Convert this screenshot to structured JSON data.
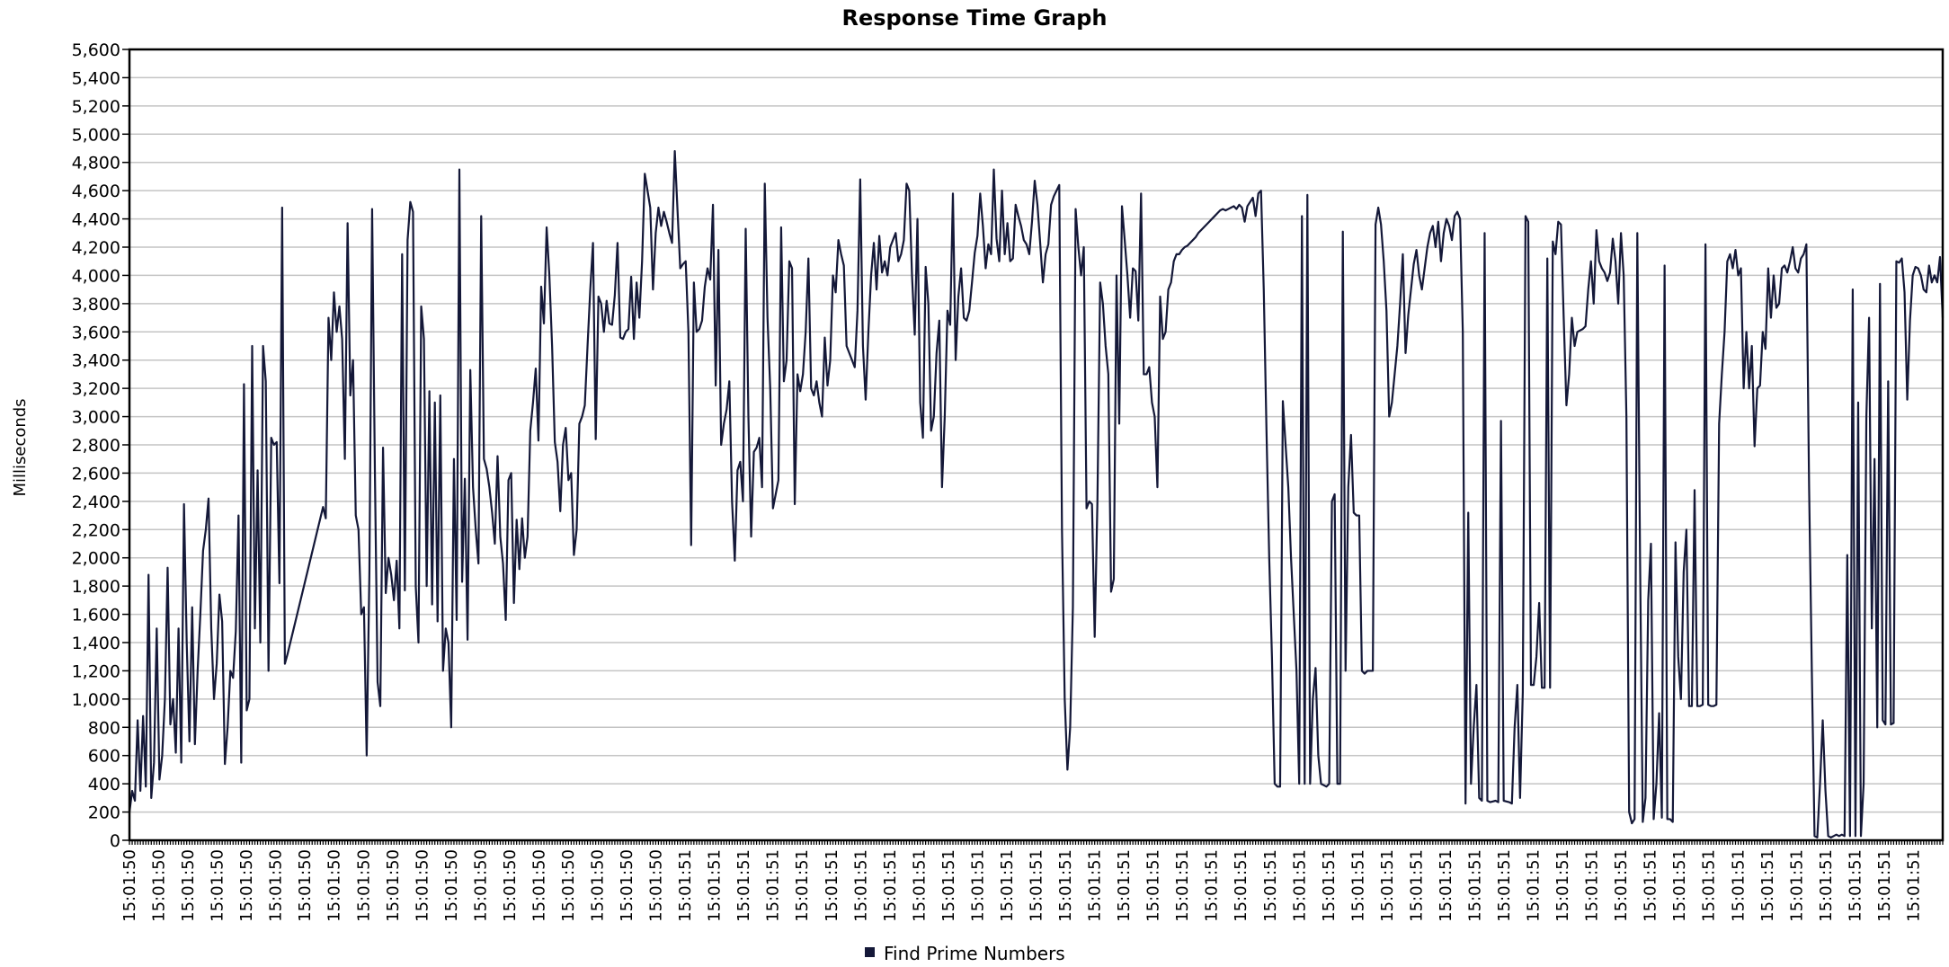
{
  "chart_data": {
    "type": "line",
    "title": "Response Time Graph",
    "xlabel": "",
    "ylabel": "Milliseconds",
    "ylim": [
      0,
      5600
    ],
    "ytick_step": 200,
    "grid": true,
    "legend_position": "bottom-center",
    "x_tick_labels": [
      "15:01:50",
      "15:01:50",
      "15:01:50",
      "15:01:50",
      "15:01:50",
      "15:01:50",
      "15:01:50",
      "15:01:50",
      "15:01:50",
      "15:01:50",
      "15:01:50",
      "15:01:50",
      "15:01:50",
      "15:01:50",
      "15:01:50",
      "15:01:50",
      "15:01:50",
      "15:01:50",
      "15:01:50",
      "15:01:51",
      "15:01:51",
      "15:01:51",
      "15:01:51",
      "15:01:51",
      "15:01:51",
      "15:01:51",
      "15:01:51",
      "15:01:51",
      "15:01:51",
      "15:01:51",
      "15:01:51",
      "15:01:51",
      "15:01:51",
      "15:01:51",
      "15:01:51",
      "15:01:51",
      "15:01:51",
      "15:01:51",
      "15:01:51",
      "15:01:51",
      "15:01:51",
      "15:01:51",
      "15:01:51",
      "15:01:51",
      "15:01:51",
      "15:01:51",
      "15:01:51",
      "15:01:51",
      "15:01:51",
      "15:01:51",
      "15:01:51",
      "15:01:51",
      "15:01:51",
      "15:01:51",
      "15:01:51",
      "15:01:51",
      "15:01:51",
      "15:01:51",
      "15:01:51",
      "15:01:51",
      "15:01:51",
      "15:01:51"
    ],
    "series": [
      {
        "name": "Find Prime Numbers",
        "color": "#141838",
        "values": [
          200,
          350,
          280,
          850,
          350,
          880,
          380,
          1880,
          300,
          550,
          1500,
          430,
          600,
          1000,
          1930,
          820,
          1000,
          620,
          1500,
          550,
          2380,
          1400,
          700,
          1650,
          680,
          1200,
          1600,
          2050,
          2200,
          2420,
          1500,
          1000,
          1250,
          1740,
          1550,
          540,
          800,
          1200,
          1150,
          1480,
          2300,
          550,
          3230,
          920,
          1000,
          3500,
          1500,
          2620,
          1400,
          3500,
          3250,
          1200,
          2850,
          2800,
          2820,
          1820,
          4480,
          1250,
          1320,
          1400,
          1480,
          1560,
          1640,
          1720,
          1800,
          1880,
          1960,
          2040,
          2120,
          2200,
          2280,
          2360,
          2280,
          3700,
          3400,
          3880,
          3600,
          3780,
          3550,
          2700,
          4370,
          3150,
          3400,
          2300,
          2200,
          1600,
          1650,
          600,
          1900,
          4470,
          2630,
          1120,
          950,
          2780,
          1750,
          2000,
          1880,
          1700,
          1980,
          1500,
          4150,
          1770,
          4250,
          4520,
          4450,
          1800,
          1400,
          3780,
          3550,
          1800,
          3180,
          1670,
          3100,
          1550,
          3150,
          1200,
          1500,
          1400,
          800,
          2700,
          1560,
          4750,
          1830,
          2560,
          1420,
          3330,
          2500,
          2200,
          1960,
          4420,
          2700,
          2630,
          2500,
          2320,
          2100,
          2720,
          2150,
          1960,
          1560,
          2550,
          2600,
          1680,
          2270,
          1920,
          2280,
          2000,
          2150,
          2900,
          3100,
          3340,
          2830,
          3920,
          3660,
          4340,
          4000,
          3500,
          2820,
          2680,
          2330,
          2800,
          2920,
          2550,
          2600,
          2020,
          2200,
          2950,
          3000,
          3080,
          3500,
          3900,
          4230,
          2840,
          3850,
          3800,
          3600,
          3820,
          3660,
          3650,
          3860,
          4230,
          3560,
          3550,
          3600,
          3620,
          3990,
          3550,
          3950,
          3700,
          4100,
          4720,
          4600,
          4480,
          3900,
          4300,
          4480,
          4350,
          4450,
          4380,
          4300,
          4230,
          4880,
          4460,
          4050,
          4080,
          4100,
          3600,
          2090,
          3950,
          3600,
          3620,
          3680,
          3920,
          4050,
          3970,
          4500,
          3220,
          4180,
          2800,
          2950,
          3050,
          3250,
          2400,
          1980,
          2620,
          2680,
          2400,
          4330,
          3000,
          2150,
          2750,
          2780,
          2850,
          2500,
          4650,
          3700,
          3200,
          2350,
          2450,
          2550,
          4340,
          3250,
          3400,
          4100,
          4050,
          2380,
          3300,
          3180,
          3300,
          3600,
          4120,
          3200,
          3150,
          3250,
          3100,
          3000,
          3560,
          3220,
          3400,
          4000,
          3880,
          4250,
          4150,
          4070,
          3500,
          3450,
          3400,
          3350,
          3750,
          4680,
          3500,
          3120,
          3600,
          4000,
          4230,
          3900,
          4280,
          4020,
          4100,
          4000,
          4200,
          4250,
          4300,
          4100,
          4150,
          4250,
          4650,
          4600,
          4000,
          3580,
          4400,
          3100,
          2850,
          4060,
          3800,
          2900,
          3000,
          3450,
          3680,
          2500,
          3000,
          3750,
          3650,
          4580,
          3400,
          3850,
          4050,
          3700,
          3680,
          3750,
          3950,
          4160,
          4280,
          4580,
          4350,
          4050,
          4220,
          4150,
          4750,
          4260,
          4100,
          4600,
          4150,
          4370,
          4100,
          4120,
          4500,
          4420,
          4350,
          4250,
          4220,
          4150,
          4380,
          4670,
          4500,
          4230,
          3950,
          4150,
          4220,
          4500,
          4560,
          4600,
          4640,
          2200,
          1000,
          500,
          800,
          1650,
          4470,
          4200,
          4000,
          4200,
          2350,
          2400,
          2380,
          1440,
          2400,
          3950,
          3800,
          3500,
          3300,
          1760,
          1850,
          4000,
          2950,
          4490,
          4250,
          4000,
          3700,
          4050,
          4030,
          3680,
          4580,
          3300,
          3300,
          3350,
          3100,
          3000,
          2500,
          3850,
          3550,
          3600,
          3900,
          3950,
          4100,
          4150,
          4150,
          4180,
          4200,
          4210,
          4230,
          4250,
          4270,
          4300,
          4320,
          4340,
          4360,
          4380,
          4400,
          4420,
          4440,
          4460,
          4470,
          4460,
          4470,
          4480,
          4490,
          4470,
          4500,
          4480,
          4380,
          4490,
          4520,
          4550,
          4420,
          4580,
          4600,
          3900,
          2900,
          2000,
          1300,
          400,
          380,
          380,
          3110,
          2800,
          2500,
          2000,
          1600,
          1200,
          400,
          4420,
          400,
          4570,
          400,
          1000,
          1220,
          600,
          400,
          390,
          380,
          400,
          2400,
          2450,
          400,
          400,
          4310,
          1200,
          2500,
          2870,
          2320,
          2300,
          2300,
          1200,
          1180,
          1200,
          1200,
          1200,
          4360,
          4480,
          4360,
          4100,
          3750,
          3000,
          3100,
          3300,
          3500,
          3800,
          4150,
          3450,
          3720,
          3900,
          4080,
          4180,
          4000,
          3900,
          4050,
          4200,
          4300,
          4350,
          4200,
          4380,
          4100,
          4300,
          4400,
          4350,
          4250,
          4420,
          4450,
          4400,
          3600,
          260,
          2320,
          400,
          800,
          1100,
          300,
          280,
          4300,
          280,
          270,
          275,
          280,
          270,
          2970,
          280,
          275,
          270,
          260,
          800,
          1100,
          300,
          1050,
          4420,
          4380,
          1100,
          1100,
          1300,
          1680,
          1080,
          1080,
          4120,
          1080,
          4240,
          4150,
          4380,
          4360,
          3700,
          3080,
          3300,
          3700,
          3500,
          3600,
          3610,
          3620,
          3640,
          3900,
          4100,
          3800,
          4320,
          4100,
          4050,
          4020,
          3960,
          4020,
          4260,
          4100,
          3800,
          4300,
          4000,
          3000,
          200,
          120,
          150,
          4300,
          2000,
          130,
          300,
          1700,
          2100,
          150,
          400,
          900,
          160,
          4070,
          150,
          150,
          130,
          2110,
          1300,
          1000,
          1900,
          2200,
          950,
          950,
          2480,
          950,
          950,
          960,
          4220,
          960,
          950,
          950,
          960,
          2950,
          3300,
          3600,
          4100,
          4150,
          4050,
          4180,
          4000,
          4050,
          3200,
          3600,
          3200,
          3500,
          2790,
          3200,
          3220,
          3600,
          3480,
          4050,
          3700,
          4000,
          3770,
          3800,
          4050,
          4070,
          4020,
          4100,
          4200,
          4050,
          4020,
          4120,
          4150,
          4220,
          2500,
          1200,
          30,
          20,
          400,
          850,
          350,
          30,
          20,
          30,
          40,
          30,
          40,
          30,
          2020,
          30,
          3900,
          30,
          3100,
          30,
          400,
          3000,
          3700,
          1500,
          2700,
          800,
          3940,
          850,
          820,
          3250,
          820,
          830,
          4100,
          4090,
          4120,
          3880,
          3120,
          3680,
          4000,
          4060,
          4050,
          4000,
          3900,
          3880,
          4070,
          3950,
          4000,
          3950,
          4130,
          3700
        ]
      }
    ]
  }
}
